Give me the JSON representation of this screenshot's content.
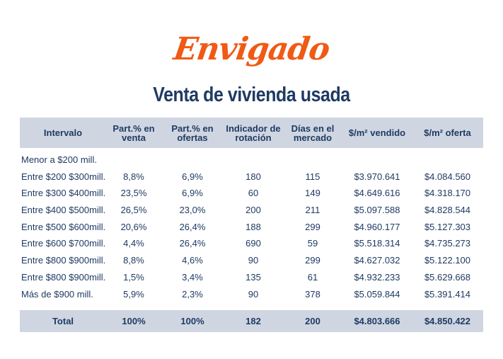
{
  "brand": "Envigado",
  "title": "Venta de vivienda usada",
  "table": {
    "headers": [
      "Intervalo",
      "Part.% en venta",
      "Part.% en ofertas",
      "Indicador de rotación",
      "Días en el mercado",
      "$/m² vendido",
      "$/m² oferta"
    ],
    "rows": [
      [
        "Menor a $200 mill.",
        "",
        "",
        "",
        "",
        "",
        ""
      ],
      [
        "Entre $200  $300mill.",
        "8,8%",
        "6,9%",
        "180",
        "115",
        "$3.970.641",
        "$4.084.560"
      ],
      [
        "Entre $300  $400mill.",
        "23,5%",
        "6,9%",
        "60",
        "149",
        "$4.649.616",
        "$4.318.170"
      ],
      [
        "Entre $400  $500mill.",
        "26,5%",
        "23,0%",
        "200",
        "211",
        "$5.097.588",
        "$4.828.544"
      ],
      [
        "Entre $500  $600mill.",
        "20,6%",
        "26,4%",
        "188",
        "299",
        "$4.960.177",
        "$5.127.303"
      ],
      [
        "Entre $600  $700mill.",
        "4,4%",
        "26,4%",
        "690",
        "59",
        "$5.518.314",
        "$4.735.273"
      ],
      [
        "Entre $800  $900mill.",
        "8,8%",
        "4,6%",
        "90",
        "299",
        "$4.627.032",
        "$5.122.100"
      ],
      [
        "Entre $800  $900mill.",
        "1,5%",
        "3,4%",
        "135",
        "61",
        "$4.932.233",
        "$5.629.668"
      ],
      [
        "Más de $900 mill.",
        "5,9%",
        "2,3%",
        "90",
        "378",
        "$5.059.844",
        "$5.391.414"
      ]
    ],
    "total": [
      "Total",
      "100%",
      "100%",
      "182",
      "200",
      "$4.803.666",
      "$4.850.422"
    ]
  }
}
